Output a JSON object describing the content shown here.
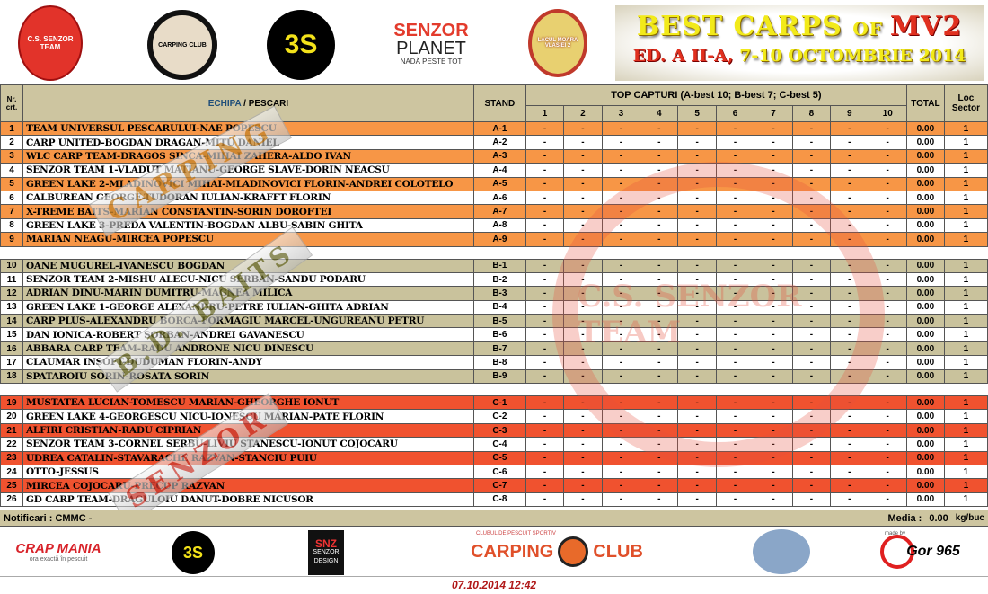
{
  "header": {
    "logos": [
      "C.S. SENZOR TEAM",
      "CARPING CLUB",
      "3S",
      "SENZOR PLANET",
      "LACUL MOARA VLASIEI 2"
    ],
    "senzor_planet_top": "SENZOR",
    "senzor_planet_mid": "PLANET",
    "senzor_planet_tag": "NADĂ PESTE TOT",
    "title_a": "BEST CARPS ",
    "title_of": "OF ",
    "title_b": "MV2",
    "subtitle_a": "ED. A II-A, ",
    "subtitle_b": "7-10 OCTOMBRIE 2014"
  },
  "table": {
    "col_nr": "Nr. crt.",
    "col_team_a": "ECHIPA",
    "col_team_sep": " / ",
    "col_team_b": "PESCARI",
    "col_stand": "STAND",
    "col_top": "TOP CAPTURI (A-best 10; B-best 7; C-best 5)",
    "capture_cols": [
      "1",
      "2",
      "3",
      "4",
      "5",
      "6",
      "7",
      "8",
      "9",
      "10"
    ],
    "col_total": "TOTAL",
    "col_loc": "Loc Sector"
  },
  "colors": {
    "sector_a": "#f79646",
    "sector_b": "#c9c29c",
    "sector_c": "#f0522f",
    "header": "#cdc5a0",
    "team_label": "#1f4e79"
  },
  "sectors": [
    {
      "id": "A",
      "rows": [
        {
          "nr": "1",
          "name": "TEAM UNIVERSUL PESCARULUI-NAE POPESCU",
          "stand": "A-1",
          "total": "0.00",
          "loc": "1"
        },
        {
          "nr": "2",
          "name": "CARP UNITED-BOGDAN DRAGAN-MITU DANIEL",
          "stand": "A-2",
          "total": "0.00",
          "loc": "1"
        },
        {
          "nr": "3",
          "name": "WLC CARP TEAM-DRAGOS SINCA-MIHAI ZAHERA-ALDO IVAN",
          "stand": "A-3",
          "total": "0.00",
          "loc": "1"
        },
        {
          "nr": "4",
          "name": "SENZOR TEAM 1-VLADUT MATIANU-GEORGE SLAVE-DORIN NEACSU",
          "stand": "A-4",
          "total": "0.00",
          "loc": "1"
        },
        {
          "nr": "5",
          "name": "GREEN LAKE 2-MLADINOVICI MIHAI-MLADINOVICI FLORIN-ANDREI COLOTELO",
          "stand": "A-5",
          "total": "0.00",
          "loc": "1"
        },
        {
          "nr": "6",
          "name": "CALBUREAN GEORGE-TUDORAN IULIAN-KRAFFT FLORIN",
          "stand": "A-6",
          "total": "0.00",
          "loc": "1"
        },
        {
          "nr": "7",
          "name": "X-TREME BAITS-MARIAN CONSTANTIN-SORIN DOROFTEI",
          "stand": "A-7",
          "total": "0.00",
          "loc": "1"
        },
        {
          "nr": "8",
          "name": "GREEN LAKE 3-PREDA VALENTIN-BOGDAN ALBU-SABIN GHITA",
          "stand": "A-8",
          "total": "0.00",
          "loc": "1"
        },
        {
          "nr": "9",
          "name": "MARIAN NEAGU-MIRCEA POPESCU",
          "stand": "A-9",
          "total": "0.00",
          "loc": "1"
        }
      ]
    },
    {
      "id": "B",
      "rows": [
        {
          "nr": "10",
          "name": "OANE MUGUREL-IVANESCU BOGDAN",
          "stand": "B-1",
          "total": "0.00",
          "loc": "1"
        },
        {
          "nr": "11",
          "name": "SENZOR TEAM 2-MISHU ALECU-NICU SERBAN-SANDU PODARU",
          "stand": "B-2",
          "total": "0.00",
          "loc": "1"
        },
        {
          "nr": "12",
          "name": "ADRIAN DINU-MARIN DUMITRU-MAGNEA MILICA",
          "stand": "B-3",
          "total": "0.00",
          "loc": "1"
        },
        {
          "nr": "13",
          "name": "GREEN LAKE 1-GEORGE ALEXANDRU-PETRE IULIAN-GHITA ADRIAN",
          "stand": "B-4",
          "total": "0.00",
          "loc": "1"
        },
        {
          "nr": "14",
          "name": "CARP PLUS-ALEXANDRU BORCA-FORMAGIU MARCEL-UNGUREANU PETRU",
          "stand": "B-5",
          "total": "0.00",
          "loc": "1"
        },
        {
          "nr": "15",
          "name": "DAN IONICA-ROBERT SORBAN-ANDREI GAVANESCU",
          "stand": "B-6",
          "total": "0.00",
          "loc": "1"
        },
        {
          "nr": "16",
          "name": "ABBARA CARP TEAM-RADU ANDRONE NICU DINESCU",
          "stand": "B-7",
          "total": "0.00",
          "loc": "1"
        },
        {
          "nr": "17",
          "name": "CLAUMAR INSOFT-DUDUMAN FLORIN-ANDY",
          "stand": "B-8",
          "total": "0.00",
          "loc": "1"
        },
        {
          "nr": "18",
          "name": "SPATAROIU SORIN-ROSATA SORIN",
          "stand": "B-9",
          "total": "0.00",
          "loc": "1"
        }
      ]
    },
    {
      "id": "C",
      "rows": [
        {
          "nr": "19",
          "name": "MUSTATEA LUCIAN-TOMESCU MARIAN-GHEORGHE IONUT",
          "stand": "C-1",
          "total": "0.00",
          "loc": "1"
        },
        {
          "nr": "20",
          "name": "GREEN LAKE 4-GEORGESCU NICU-IONESCU MARIAN-PATE FLORIN",
          "stand": "C-2",
          "total": "0.00",
          "loc": "1"
        },
        {
          "nr": "21",
          "name": "ALFIRI CRISTIAN-RADU CIPRIAN",
          "stand": "C-3",
          "total": "0.00",
          "loc": "1"
        },
        {
          "nr": "22",
          "name": "SENZOR TEAM 3-CORNEL SERBU-LIVIU STANESCU-IONUT COJOCARU",
          "stand": "C-4",
          "total": "0.00",
          "loc": "1"
        },
        {
          "nr": "23",
          "name": "UDREA CATALIN-STAVARACHE RAZVAN-STANCIU PUIU",
          "stand": "C-5",
          "total": "0.00",
          "loc": "1"
        },
        {
          "nr": "24",
          "name": "OTTO-JESSUS",
          "stand": "C-6",
          "total": "0.00",
          "loc": "1"
        },
        {
          "nr": "25",
          "name": "MIRCEA COJOCARU-PRECUP RAZVAN",
          "stand": "C-7",
          "total": "0.00",
          "loc": "1"
        },
        {
          "nr": "26",
          "name": "GD CARP TEAM-DRAGULOIU DANUT-DOBRE NICUSOR",
          "stand": "C-8",
          "total": "0.00",
          "loc": "1"
        }
      ]
    }
  ],
  "empty_capture": "-",
  "footer": {
    "notificari": "Notificari : CMMC -",
    "media_label": "Media :",
    "media_value": "0.00",
    "media_unit": "kg/buc",
    "logos": {
      "crapmania": "CRAP MANIA",
      "crapmania_tag": "ora exactă în pescuit",
      "snz": "SNZ",
      "snz_sub": "SENZOR DESIGN",
      "carping_small": "CLUBUL DE PESCUIT SPORTIV",
      "carping_a": "CARPING",
      "carping_b": "CLUB",
      "made_by": "made by",
      "gor": "Gor 965"
    },
    "timestamp": "07.10.2014 12:42"
  },
  "watermarks": [
    "CARPING",
    "B.D. BAITS",
    "SENZOR",
    "C.S. SENZOR TEAM"
  ]
}
